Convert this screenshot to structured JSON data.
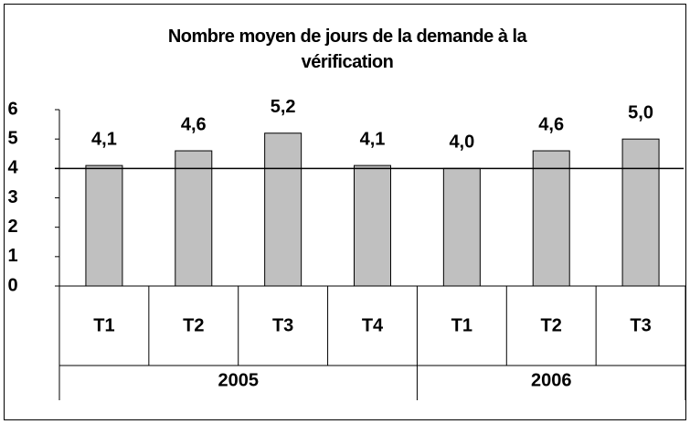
{
  "chart_data": {
    "type": "bar",
    "title": "Nombre moyen de jours de la demande à la vérification",
    "categories": [
      "T1",
      "T2",
      "T3",
      "T4",
      "T1",
      "T2",
      "T3"
    ],
    "groups": [
      {
        "label": "2005",
        "count": 4
      },
      {
        "label": "2006",
        "count": 3
      }
    ],
    "values": [
      4.1,
      4.6,
      5.2,
      4.1,
      4.0,
      4.6,
      5.0
    ],
    "value_labels": [
      "4,1",
      "4,6",
      "5,2",
      "4,1",
      "4,0",
      "4,6",
      "5,0"
    ],
    "color": "#c0c0c0",
    "reference_line": 4,
    "ylim": [
      0,
      6
    ],
    "yticks": [
      0,
      1,
      2,
      3,
      4,
      5,
      6
    ]
  }
}
